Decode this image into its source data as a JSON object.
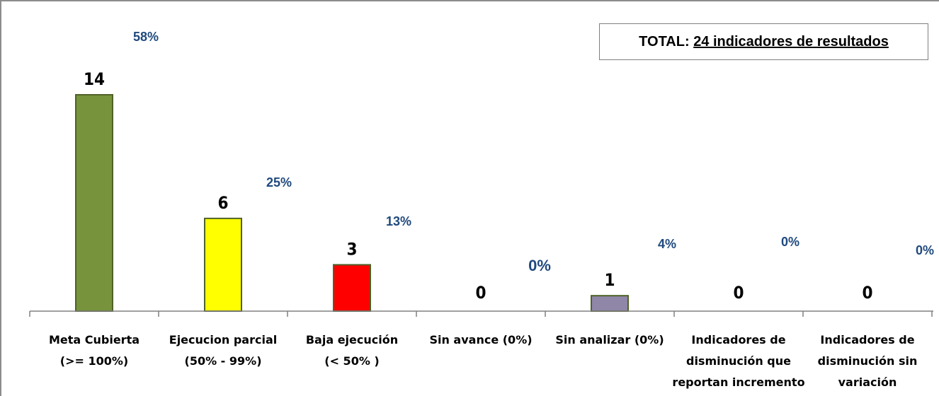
{
  "chart_data": {
    "type": "bar",
    "total_label": "TOTAL:",
    "total_value": "24 indicadores de resultados",
    "categories": [
      [
        "Meta Cubierta",
        "(>= 100%)"
      ],
      [
        "Ejecucion parcial",
        "(50% - 99%)"
      ],
      [
        "Baja ejecución",
        "(< 50% )"
      ],
      [
        "Sin avance (0%)"
      ],
      [
        "Sin analizar (0%)"
      ],
      [
        "Indicadores de",
        "disminución que",
        "reportan incremento"
      ],
      [
        "Indicadores de",
        "disminución sin",
        "variación"
      ]
    ],
    "values": [
      14,
      6,
      3,
      0,
      1,
      0,
      0
    ],
    "percent_labels": [
      "58%",
      "25%",
      "13%",
      "0%",
      "4%",
      "0%",
      "0%"
    ],
    "colors": [
      "#77933c",
      "#ffff00",
      "#ff0000",
      "#ffffff",
      "#8f86a8",
      "#ffffff",
      "#ffffff"
    ],
    "colors_border": "#4f6228",
    "percent_color": "#1f497d",
    "value_label_color": "#000000",
    "ylim": [
      0,
      14
    ],
    "grid": false,
    "legend": "none"
  }
}
